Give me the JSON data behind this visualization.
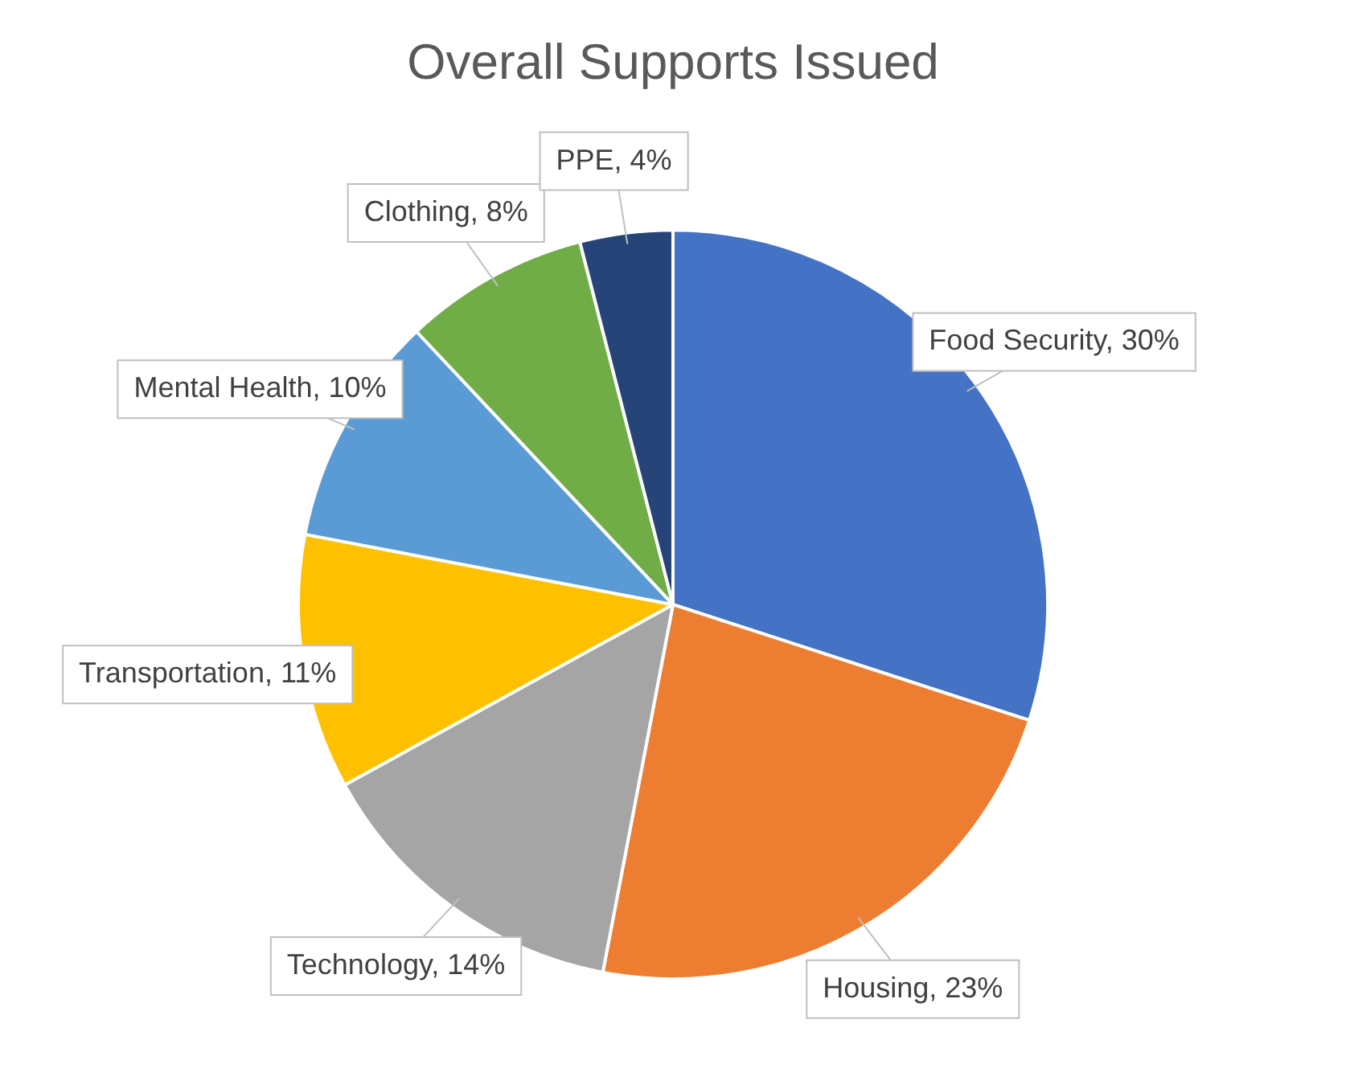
{
  "chart_data": {
    "type": "pie",
    "title": "Overall Supports Issued",
    "categories": [
      "Food Security",
      "Housing",
      "Technology",
      "Transportation",
      "Mental Health",
      "Clothing",
      "PPE"
    ],
    "values": [
      30,
      23,
      14,
      11,
      10,
      8,
      4
    ],
    "value_labels": [
      "30%",
      "23%",
      "14%",
      "11%",
      "10%",
      "8%",
      "4%"
    ],
    "colors": [
      "#4472c4",
      "#ed7d31",
      "#a5a5a5",
      "#ffc000",
      "#5b9bd5",
      "#70ad47",
      "#264478"
    ],
    "legend": false
  }
}
